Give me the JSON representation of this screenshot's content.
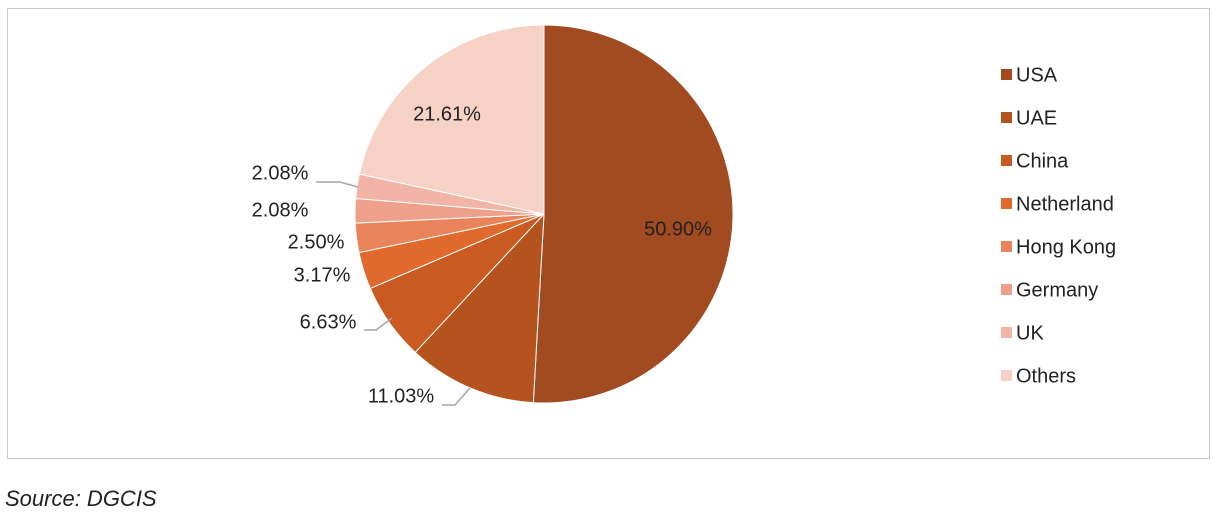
{
  "chart_data": {
    "type": "pie",
    "categories": [
      "USA",
      "UAE",
      "China",
      "Netherland",
      "Hong Kong",
      "Germany",
      "UK",
      "Others"
    ],
    "values": [
      50.9,
      11.03,
      6.63,
      3.17,
      2.5,
      2.08,
      2.08,
      21.61
    ],
    "value_labels": [
      "50.90%",
      "11.03%",
      "6.63%",
      "3.17%",
      "2.50%",
      "2.08%",
      "2.08%",
      "21.61%"
    ],
    "colors": [
      "#a24a20",
      "#b5531f",
      "#c95b22",
      "#e06a2c",
      "#e9845a",
      "#efa08b",
      "#f2b4a6",
      "#f5d1c6"
    ],
    "legend": "right",
    "source": "Source: DGCIS"
  }
}
